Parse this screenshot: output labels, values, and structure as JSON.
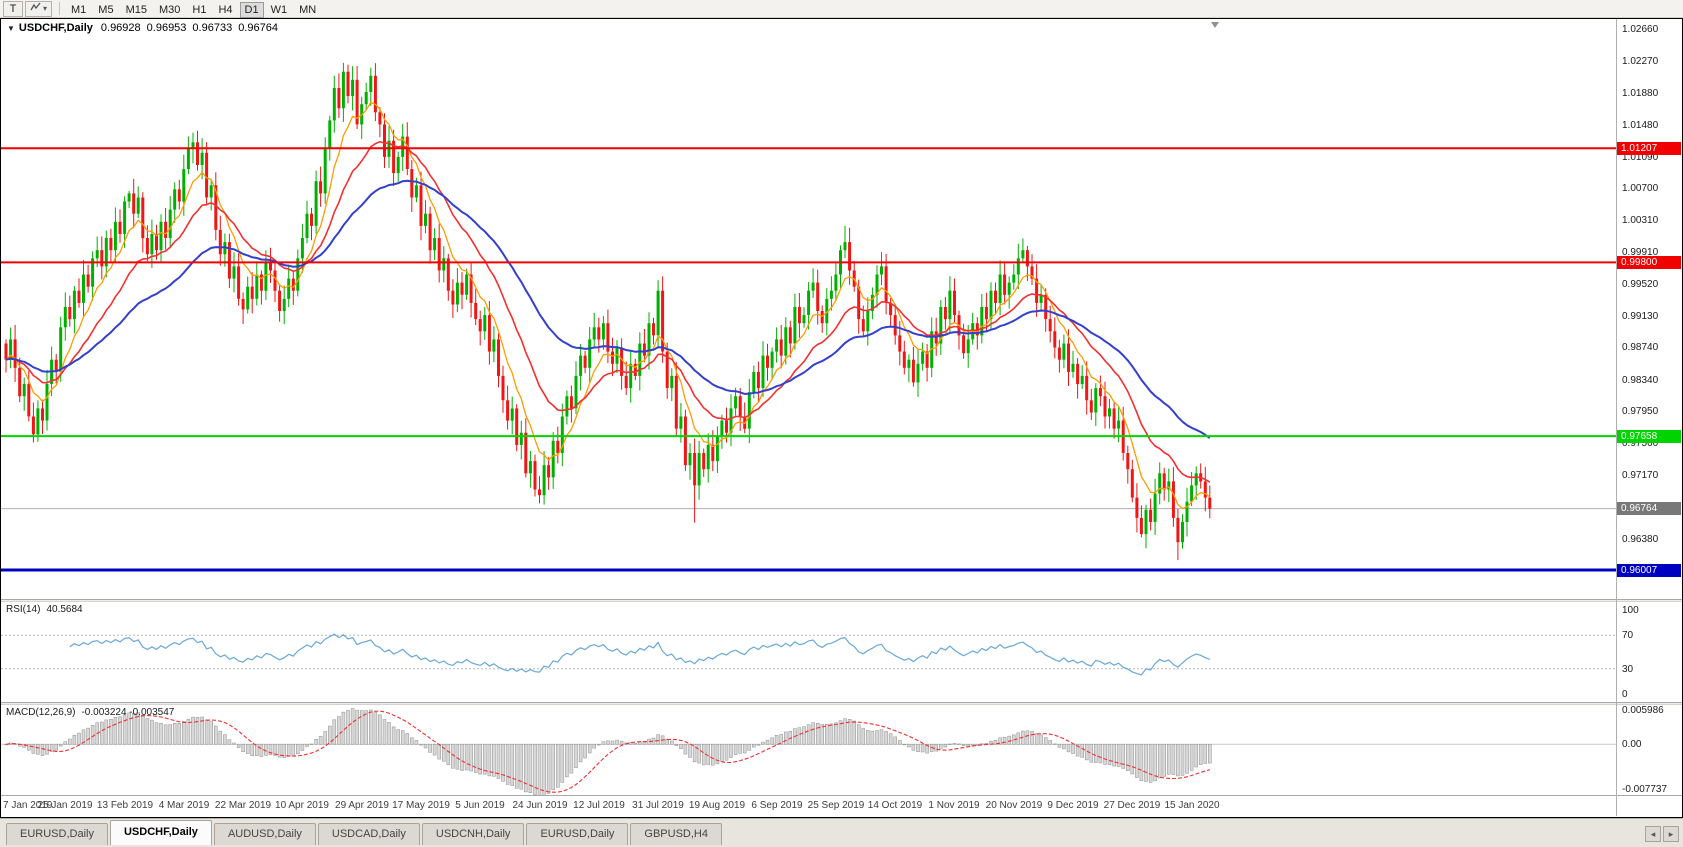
{
  "toolbar": {
    "text_tool": "T",
    "dropdown_caret": "▾",
    "timeframes": [
      "M1",
      "M5",
      "M15",
      "M30",
      "H1",
      "H4",
      "D1",
      "W1",
      "MN"
    ],
    "active_timeframe": "D1"
  },
  "header": {
    "collapse_marker": "▼",
    "symbol": "USDCHF,Daily",
    "quote": {
      "open": "0.96928",
      "high": "0.96953",
      "low": "0.96733",
      "close": "0.96764"
    }
  },
  "chart_data": {
    "type": "candlestick",
    "symbol": "USDCHF",
    "timeframe": "Daily",
    "x_labels": [
      "7 Jan 2019",
      "25 Jan 2019",
      "13 Feb 2019",
      "4 Mar 2019",
      "22 Mar 2019",
      "10 Apr 2019",
      "29 Apr 2019",
      "17 May 2019",
      "5 Jun 2019",
      "24 Jun 2019",
      "12 Jul 2019",
      "31 Jul 2019",
      "19 Aug 2019",
      "6 Sep 2019",
      "25 Sep 2019",
      "14 Oct 2019",
      "1 Nov 2019",
      "20 Nov 2019",
      "9 Dec 2019",
      "27 Dec 2019",
      "15 Jan 2020"
    ],
    "label_indices": [
      0,
      13,
      26,
      39,
      52,
      65,
      78,
      91,
      104,
      117,
      130,
      143,
      156,
      169,
      182,
      195,
      208,
      221,
      234,
      247,
      260
    ],
    "first_open": 0.988,
    "closes": [
      0.986,
      0.9885,
      0.985,
      0.9815,
      0.983,
      0.979,
      0.9768,
      0.98,
      0.9785,
      0.983,
      0.986,
      0.9845,
      0.99,
      0.9925,
      0.991,
      0.9945,
      0.993,
      0.9965,
      0.995,
      0.9985,
      0.9995,
      0.9975,
      1.001,
      0.9995,
      1.003,
      1.0015,
      1.0055,
      1.0065,
      1.004,
      1.006,
      1.001,
      0.999,
      1.0015,
      0.9995,
      1.003,
      1.001,
      1.0045,
      1.007,
      1.0055,
      1.0095,
      1.012,
      1.0128,
      1.01,
      1.0115,
      1.006,
      1.0075,
      1.002,
      0.999,
      1.0005,
      0.996,
      0.9975,
      0.9935,
      0.9922,
      0.995,
      0.9935,
      0.9965,
      0.9945,
      0.998,
      0.997,
      0.9945,
      0.992,
      0.9935,
      0.996,
      0.9945,
      0.9985,
      1.001,
      1.004,
      1.0025,
      1.008,
      1.0065,
      1.012,
      1.0155,
      1.0195,
      1.017,
      1.0215,
      1.0185,
      1.0205,
      1.015,
      1.0175,
      1.019,
      1.021,
      1.0165,
      1.015,
      1.011,
      1.013,
      1.009,
      1.011,
      1.0135,
      1.0095,
      1.006,
      1.0075,
      1.0025,
      1.004,
      0.9995,
      1.001,
      0.997,
      0.9985,
      0.9945,
      0.9928,
      0.9955,
      0.994,
      0.9965,
      0.993,
      0.991,
      0.9895,
      0.9915,
      0.987,
      0.9885,
      0.984,
      0.981,
      0.9785,
      0.98,
      0.9755,
      0.977,
      0.972,
      0.9735,
      0.97,
      0.9693,
      0.973,
      0.9715,
      0.976,
      0.9745,
      0.979,
      0.9815,
      0.98,
      0.984,
      0.9865,
      0.985,
      0.9885,
      0.99,
      0.9885,
      0.9905,
      0.987,
      0.9855,
      0.9875,
      0.984,
      0.9825,
      0.9855,
      0.984,
      0.988,
      0.9865,
      0.9905,
      0.989,
      0.9945,
      0.987,
      0.9825,
      0.984,
      0.9775,
      0.979,
      0.973,
      0.9745,
      0.9705,
      0.9745,
      0.9725,
      0.9755,
      0.9735,
      0.9765,
      0.9785,
      0.977,
      0.98,
      0.9815,
      0.979,
      0.9775,
      0.982,
      0.9845,
      0.9825,
      0.9865,
      0.985,
      0.987,
      0.9885,
      0.9865,
      0.99,
      0.988,
      0.9925,
      0.9905,
      0.9915,
      0.9945,
      0.9955,
      0.992,
      0.9905,
      0.9935,
      0.9945,
      0.9965,
      0.9995,
      1.0005,
      0.997,
      0.995,
      0.991,
      0.9895,
      0.992,
      0.994,
      0.9965,
      0.9975,
      0.993,
      0.9915,
      0.989,
      0.987,
      0.985,
      0.986,
      0.9832,
      0.9855,
      0.987,
      0.985,
      0.9895,
      0.988,
      0.9925,
      0.991,
      0.9945,
      0.9915,
      0.989,
      0.9868,
      0.9885,
      0.9905,
      0.989,
      0.9925,
      0.991,
      0.9945,
      0.993,
      0.9965,
      0.994,
      0.9955,
      0.9965,
      0.9985,
      0.9995,
      0.9975,
      0.996,
      0.993,
      0.994,
      0.991,
      0.9895,
      0.9875,
      0.986,
      0.988,
      0.9845,
      0.9855,
      0.983,
      0.984,
      0.981,
      0.9795,
      0.9825,
      0.9815,
      0.979,
      0.98,
      0.9775,
      0.9785,
      0.9745,
      0.9725,
      0.969,
      0.9665,
      0.9645,
      0.9675,
      0.966,
      0.9695,
      0.972,
      0.97,
      0.971,
      0.9665,
      0.9635,
      0.966,
      0.9685,
      0.9705,
      0.972,
      0.971,
      0.969,
      0.96764
    ],
    "highs_override": {
      "27": 1.0068,
      "41": 1.014,
      "74": 1.0226,
      "80": 1.022,
      "143": 0.9958,
      "184": 1.0025
    },
    "lows_override": {
      "6": 0.9758,
      "117": 0.9683,
      "151": 0.9659,
      "249": 0.9641,
      "257": 0.9613
    },
    "price_axis": {
      "max": 1.028,
      "min": 0.9565,
      "ticks": [
        1.0266,
        1.0227,
        1.0188,
        1.0148,
        1.0109,
        1.007,
        1.0031,
        0.9991,
        0.9952,
        0.9913,
        0.9874,
        0.9834,
        0.9795,
        0.9756,
        0.9717,
        0.9638
      ]
    },
    "hlines": [
      {
        "value": 1.01207,
        "label": "1.01207",
        "color": "#f00000",
        "width": 2
      },
      {
        "value": 0.998,
        "label": "0.99800",
        "color": "#f00000",
        "width": 2
      },
      {
        "value": 0.97658,
        "label": "0.97658",
        "color": "#00d400",
        "width": 2
      },
      {
        "value": 0.96007,
        "label": "0.96007",
        "color": "#0000c0",
        "width": 3
      }
    ],
    "current_price": {
      "value": 0.96764,
      "label": "0.96764",
      "color": "#787878"
    },
    "moving_averages": [
      {
        "period": 8,
        "color": "#ff9c00",
        "width": 1.3
      },
      {
        "period": 20,
        "color": "#f23030",
        "width": 1.6
      },
      {
        "period": 45,
        "color": "#3340cc",
        "width": 2
      }
    ],
    "rsi": {
      "period": 14,
      "label": "RSI(14)",
      "value_text": "40.5684",
      "color": "#69a8d8",
      "axis": {
        "max": 110,
        "min": -10,
        "ticks": [
          {
            "v": 100,
            "t": "100"
          },
          {
            "v": 70,
            "t": "70"
          },
          {
            "v": 30,
            "t": "30"
          },
          {
            "v": 0,
            "t": "0"
          }
        ],
        "levels": [
          70,
          30
        ]
      }
    },
    "macd": {
      "fast": 12,
      "slow": 26,
      "signal": 9,
      "label": "MACD(12,26,9)",
      "values_text": "-0.003224 -0.003547",
      "axis": {
        "max": 0.0062,
        "min": -0.008,
        "ticks": [
          {
            "v": 0.005986,
            "t": "0.005986"
          },
          {
            "v": 0,
            "t": "0.00"
          },
          {
            "v": -0.007737,
            "t": "-0.007737"
          }
        ]
      }
    },
    "colors": {
      "up": "#00b000",
      "down": "#f01616",
      "hist_fill": "#d8d8d8",
      "hist_stroke": "#8f8f8f",
      "signal": "#f23030"
    }
  },
  "tabs": {
    "items": [
      {
        "label": "EURUSD,Daily",
        "active": false
      },
      {
        "label": "USDCHF,Daily",
        "active": true
      },
      {
        "label": "AUDUSD,Daily",
        "active": false
      },
      {
        "label": "USDCAD,Daily",
        "active": false
      },
      {
        "label": "USDCNH,Daily",
        "active": false
      },
      {
        "label": "EURUSD,Daily",
        "active": false
      },
      {
        "label": "GBPUSD,H4",
        "active": false
      }
    ],
    "scroll_left": "◂",
    "scroll_right": "▸"
  }
}
